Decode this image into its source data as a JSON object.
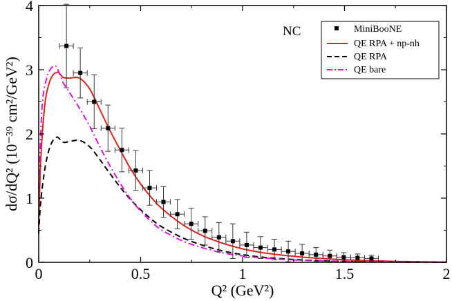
{
  "chart_data": {
    "type": "line",
    "title": "",
    "annotation": "NC",
    "xlabel": "Q²  (GeV²)",
    "ylabel": "dσ/dQ²  (10⁻³⁹ cm²/GeV²)",
    "xlim": [
      0,
      2
    ],
    "ylim": [
      0,
      4
    ],
    "xticks": [
      0,
      0.5,
      1,
      1.5,
      2
    ],
    "xtick_labels": [
      "0",
      "0.5",
      "1",
      "1.5",
      "2"
    ],
    "yticks": [
      0,
      1,
      2,
      3,
      4
    ],
    "ytick_labels": [
      "0",
      "1",
      "2",
      "3",
      "4"
    ],
    "grid": false,
    "legend_position": "top-right",
    "series": [
      {
        "name": "MiniBooNE",
        "kind": "points",
        "color": "#000000",
        "x": [
          0.136,
          0.204,
          0.272,
          0.34,
          0.408,
          0.476,
          0.544,
          0.612,
          0.68,
          0.748,
          0.816,
          0.884,
          0.952,
          1.02,
          1.088,
          1.156,
          1.224,
          1.292,
          1.36,
          1.428,
          1.496,
          1.564,
          1.632
        ],
        "y": [
          3.37,
          2.95,
          2.5,
          2.09,
          1.75,
          1.43,
          1.16,
          0.94,
          0.75,
          0.6,
          0.49,
          0.39,
          0.33,
          0.27,
          0.23,
          0.2,
          0.17,
          0.14,
          0.12,
          0.1,
          0.08,
          0.07,
          0.06
        ],
        "yerr": [
          0.65,
          0.39,
          0.42,
          0.36,
          0.34,
          0.31,
          0.27,
          0.24,
          0.23,
          0.24,
          0.22,
          0.23,
          0.27,
          0.2,
          0.17,
          0.16,
          0.16,
          0.14,
          0.11,
          0.09,
          0.07,
          0.06,
          0.05
        ],
        "xerr": 0.034
      },
      {
        "name": "QE RPA + np-nh",
        "kind": "line",
        "style": "solid",
        "color": "#e0201b",
        "x": [
          0.0,
          0.01,
          0.03,
          0.05,
          0.07,
          0.09,
          0.1,
          0.12,
          0.15,
          0.2,
          0.25,
          0.3,
          0.35,
          0.4,
          0.45,
          0.5,
          0.55,
          0.6,
          0.7,
          0.8,
          0.9,
          1.0,
          1.1,
          1.2,
          1.3,
          1.4,
          1.5,
          1.6,
          1.7,
          1.8,
          1.9,
          2.0
        ],
        "y": [
          0.55,
          1.6,
          2.45,
          2.78,
          2.92,
          2.96,
          2.95,
          2.88,
          2.87,
          2.87,
          2.7,
          2.38,
          2.05,
          1.75,
          1.46,
          1.22,
          1.02,
          0.85,
          0.6,
          0.42,
          0.3,
          0.21,
          0.15,
          0.11,
          0.08,
          0.058,
          0.04,
          0.028,
          0.019,
          0.012,
          0.007,
          0.004
        ]
      },
      {
        "name": "QE RPA",
        "kind": "line",
        "style": "dashed",
        "color": "#000000",
        "x": [
          0.0,
          0.01,
          0.03,
          0.05,
          0.07,
          0.09,
          0.1,
          0.12,
          0.15,
          0.2,
          0.25,
          0.3,
          0.35,
          0.4,
          0.45,
          0.5,
          0.55,
          0.6,
          0.7,
          0.8,
          0.9,
          1.0,
          1.1,
          1.2,
          1.3,
          1.4,
          1.5,
          1.6,
          1.7,
          1.8,
          1.9,
          2.0
        ],
        "y": [
          0.45,
          0.95,
          1.45,
          1.75,
          1.9,
          1.95,
          1.93,
          1.87,
          1.88,
          1.9,
          1.8,
          1.6,
          1.38,
          1.17,
          0.98,
          0.82,
          0.68,
          0.56,
          0.39,
          0.27,
          0.18,
          0.12,
          0.08,
          0.055,
          0.036,
          0.024,
          0.015,
          0.009,
          0.005,
          0.003,
          0.002,
          0.001
        ]
      },
      {
        "name": "QE bare",
        "kind": "line",
        "style": "dashdot",
        "color": "#e010e0",
        "x": [
          0.0,
          0.01,
          0.02,
          0.04,
          0.06,
          0.08,
          0.09,
          0.1,
          0.12,
          0.15,
          0.2,
          0.25,
          0.3,
          0.35,
          0.4,
          0.45,
          0.5,
          0.55,
          0.6,
          0.7,
          0.8,
          0.9,
          1.0,
          1.1,
          1.2,
          1.3,
          1.4,
          1.5,
          1.6,
          1.7,
          1.8,
          1.9,
          2.0
        ],
        "y": [
          1.15,
          2.0,
          2.55,
          2.88,
          3.02,
          3.06,
          3.03,
          2.95,
          2.8,
          2.65,
          2.4,
          2.12,
          1.8,
          1.5,
          1.23,
          0.99,
          0.8,
          0.64,
          0.51,
          0.34,
          0.23,
          0.15,
          0.1,
          0.068,
          0.045,
          0.03,
          0.02,
          0.013,
          0.008,
          0.005,
          0.003,
          0.002,
          0.001
        ]
      }
    ]
  }
}
